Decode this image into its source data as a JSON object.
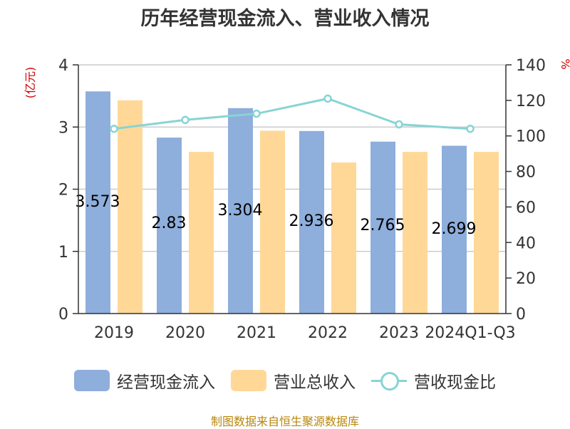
{
  "chart_data": {
    "type": "bar",
    "title": "历年经营现金流入、营业收入情况",
    "categories": [
      "2019",
      "2020",
      "2021",
      "2022",
      "2023",
      "2024Q1-Q3"
    ],
    "series": [
      {
        "name": "经营现金流入",
        "type": "bar",
        "axis": "left",
        "color": "#8eaedb",
        "values": [
          3.573,
          2.83,
          3.304,
          2.936,
          2.765,
          2.699
        ]
      },
      {
        "name": "营业总收入",
        "type": "bar",
        "axis": "left",
        "color": "#ffd898",
        "values": [
          3.43,
          2.6,
          2.94,
          2.43,
          2.6,
          2.6
        ]
      },
      {
        "name": "营收现金比",
        "type": "line",
        "axis": "right",
        "color": "#88d4d4",
        "values": [
          104,
          109,
          112.5,
          121,
          106.5,
          104
        ]
      }
    ],
    "y_left": {
      "label": "(亿元)",
      "range": [
        0,
        4
      ],
      "ticks": [
        "0",
        "1",
        "2",
        "3",
        "4"
      ]
    },
    "y_right": {
      "label": "%",
      "range": [
        0,
        140
      ],
      "ticks": [
        "0",
        "20",
        "40",
        "60",
        "80",
        "100",
        "120",
        "140"
      ]
    },
    "grid": true,
    "legend_position": "bottom",
    "data_labels": [
      "3.573",
      "2.83",
      "3.304",
      "2.936",
      "2.765",
      "2.699"
    ]
  },
  "source": "制图数据来自恒生聚源数据库"
}
